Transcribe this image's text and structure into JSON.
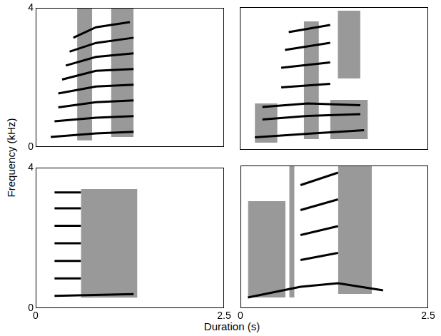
{
  "figure": {
    "xlabel": "Duration (s)",
    "ylabel": "Frequency (kHz)"
  },
  "chart_data": [
    {
      "type": "line",
      "xlim": [
        0,
        2.5
      ],
      "ylim": [
        0,
        4
      ],
      "yticks": [
        0,
        4
      ],
      "tick_labels": "y",
      "color": "#000000",
      "series": [
        {
          "color": "#000000",
          "x": [
            0.2,
            0.8,
            1.3
          ],
          "values": [
            0.3,
            0.4,
            0.45
          ]
        },
        {
          "color": "#000000",
          "x": [
            0.25,
            0.8,
            1.3
          ],
          "values": [
            0.75,
            0.85,
            0.9
          ]
        },
        {
          "color": "#000000",
          "x": [
            0.3,
            0.8,
            1.3
          ],
          "values": [
            1.15,
            1.3,
            1.35
          ]
        },
        {
          "color": "#000000",
          "x": [
            0.3,
            0.8,
            1.3
          ],
          "values": [
            1.55,
            1.75,
            1.8
          ]
        },
        {
          "color": "#000000",
          "x": [
            0.35,
            0.8,
            1.3
          ],
          "values": [
            1.95,
            2.2,
            2.25
          ]
        },
        {
          "color": "#000000",
          "x": [
            0.4,
            0.8,
            1.3
          ],
          "values": [
            2.35,
            2.6,
            2.7
          ]
        },
        {
          "color": "#000000",
          "x": [
            0.45,
            0.8,
            1.3
          ],
          "values": [
            2.75,
            3.0,
            3.15
          ]
        },
        {
          "color": "#000000",
          "x": [
            0.5,
            0.8,
            1.25
          ],
          "values": [
            3.15,
            3.45,
            3.6
          ]
        }
      ],
      "noise_bands": [
        {
          "x": [
            0.55,
            0.75
          ],
          "y": [
            0.2,
            4.0
          ]
        },
        {
          "x": [
            1.0,
            1.3
          ],
          "y": [
            0.3,
            4.0
          ]
        }
      ]
    },
    {
      "type": "line",
      "xlim": [
        0,
        2.5
      ],
      "ylim": [
        0,
        4
      ],
      "tick_labels": false,
      "color": "#000000",
      "series": [
        {
          "color": "#000000",
          "x": [
            0.2,
            0.9,
            1.65
          ],
          "values": [
            0.35,
            0.45,
            0.55
          ]
        },
        {
          "color": "#000000",
          "x": [
            0.3,
            0.9,
            1.6
          ],
          "values": [
            0.85,
            0.95,
            1.0
          ]
        },
        {
          "color": "#000000",
          "x": [
            0.3,
            0.9,
            1.6
          ],
          "values": [
            1.2,
            1.3,
            1.25
          ]
        },
        {
          "color": "#000000",
          "x": [
            0.55,
            1.2
          ],
          "values": [
            1.75,
            1.85
          ]
        },
        {
          "color": "#000000",
          "x": [
            0.55,
            1.2
          ],
          "values": [
            2.3,
            2.45
          ]
        },
        {
          "color": "#000000",
          "x": [
            0.6,
            1.2
          ],
          "values": [
            2.8,
            3.0
          ]
        },
        {
          "color": "#000000",
          "x": [
            0.65,
            1.2
          ],
          "values": [
            3.3,
            3.5
          ]
        }
      ],
      "noise_bands": [
        {
          "x": [
            0.2,
            0.5
          ],
          "y": [
            0.2,
            1.3
          ]
        },
        {
          "x": [
            1.2,
            1.7
          ],
          "y": [
            0.3,
            1.4
          ]
        },
        {
          "x": [
            0.85,
            1.05
          ],
          "y": [
            0.3,
            3.6
          ]
        },
        {
          "x": [
            1.3,
            1.6
          ],
          "y": [
            2.0,
            3.9
          ]
        }
      ]
    },
    {
      "type": "line",
      "xlim": [
        0,
        2.5
      ],
      "ylim": [
        0,
        4
      ],
      "xticks": [
        0,
        2.5
      ],
      "yticks": [
        0,
        4
      ],
      "tick_labels": true,
      "color": "#000000",
      "series": [
        {
          "color": "#000000",
          "x": [
            0.25,
            1.3
          ],
          "values": [
            0.35,
            0.4
          ]
        },
        {
          "color": "#000000",
          "x": [
            0.25,
            0.6
          ],
          "values": [
            0.85,
            0.85
          ]
        },
        {
          "color": "#000000",
          "x": [
            0.25,
            0.6
          ],
          "values": [
            1.35,
            1.35
          ]
        },
        {
          "color": "#000000",
          "x": [
            0.25,
            0.6
          ],
          "values": [
            1.85,
            1.85
          ]
        },
        {
          "color": "#000000",
          "x": [
            0.25,
            0.6
          ],
          "values": [
            2.35,
            2.35
          ]
        },
        {
          "color": "#000000",
          "x": [
            0.25,
            0.6
          ],
          "values": [
            2.85,
            2.85
          ]
        },
        {
          "color": "#000000",
          "x": [
            0.25,
            0.6
          ],
          "values": [
            3.3,
            3.3
          ]
        }
      ],
      "noise_bands": [
        {
          "x": [
            0.6,
            1.35
          ],
          "y": [
            0.3,
            3.4
          ]
        }
      ]
    },
    {
      "type": "line",
      "xlim": [
        0,
        2.5
      ],
      "ylim": [
        0,
        4
      ],
      "xticks": [
        0,
        2.5
      ],
      "tick_labels": "x",
      "color": "#000000",
      "series": [
        {
          "color": "#000000",
          "x": [
            0.1,
            0.8,
            1.3,
            1.9
          ],
          "values": [
            0.3,
            0.6,
            0.7,
            0.5
          ]
        },
        {
          "color": "#000000",
          "x": [
            0.8,
            1.3
          ],
          "values": [
            1.35,
            1.55
          ]
        },
        {
          "color": "#000000",
          "x": [
            0.8,
            1.3
          ],
          "values": [
            2.05,
            2.3
          ]
        },
        {
          "color": "#000000",
          "x": [
            0.8,
            1.3
          ],
          "values": [
            2.75,
            3.05
          ]
        },
        {
          "color": "#000000",
          "x": [
            0.8,
            1.3
          ],
          "values": [
            3.45,
            3.8
          ]
        }
      ],
      "noise_bands": [
        {
          "x": [
            0.1,
            0.6
          ],
          "y": [
            0.3,
            3.0
          ]
        },
        {
          "x": [
            0.65,
            0.72
          ],
          "y": [
            0.3,
            4.0
          ]
        },
        {
          "x": [
            1.3,
            1.75
          ],
          "y": [
            0.4,
            4.0
          ]
        }
      ]
    }
  ]
}
